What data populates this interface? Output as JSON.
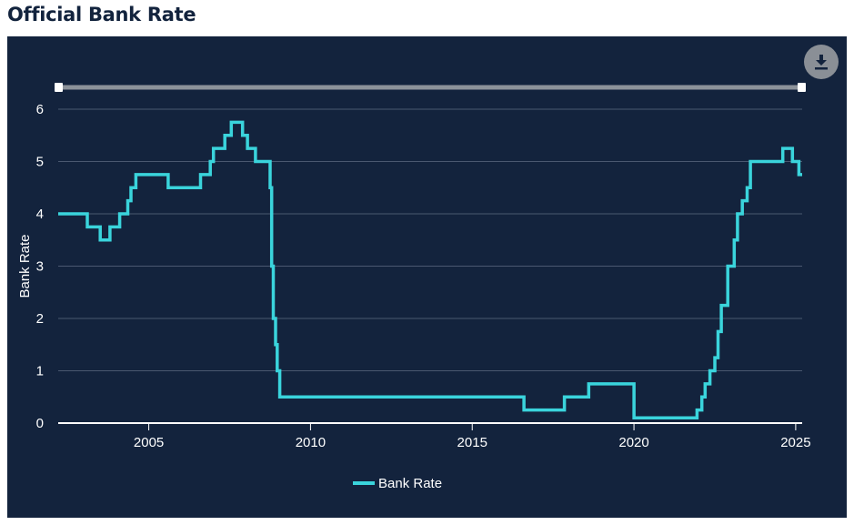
{
  "title": "Official Bank Rate",
  "controls": {
    "download_icon": "download-icon"
  },
  "chart_data": {
    "type": "line",
    "step": true,
    "xlabel": "",
    "ylabel": "Bank Rate",
    "xlim": [
      2002.2,
      2025.2
    ],
    "ylim": [
      0,
      6
    ],
    "xticks": [
      2005,
      2010,
      2015,
      2020,
      2025
    ],
    "xtick_labels": [
      "2005",
      "2010",
      "2015",
      "2020",
      "2025"
    ],
    "yticks": [
      0,
      1,
      2,
      3,
      4,
      5,
      6
    ],
    "ytick_labels": [
      "0",
      "1",
      "2",
      "3",
      "4",
      "5",
      "6"
    ],
    "grid": true,
    "legend_position": "bottom-center",
    "series": [
      {
        "name": "Bank Rate",
        "color": "#3ad4dc",
        "x": [
          2002.2,
          2003.1,
          2003.5,
          2003.8,
          2004.1,
          2004.35,
          2004.45,
          2004.6,
          2005.6,
          2006.6,
          2006.9,
          2007.0,
          2007.35,
          2007.9,
          2008.05,
          2008.3,
          2008.75,
          2008.8,
          2008.92,
          2008.97,
          2009.05,
          2009.14,
          2009.2,
          2016.6,
          2017.85,
          2018.6,
          2020.2,
          2020.22,
          2021.95,
          2022.1,
          2022.2,
          2022.35,
          2022.6,
          2022.7,
          2022.9,
          2023.1,
          2023.2,
          2023.6,
          2024.6,
          2024.9,
          2025.1,
          2025.2
        ],
        "y": [
          4.0,
          3.75,
          3.5,
          3.75,
          4.0,
          4.25,
          4.5,
          4.75,
          4.5,
          4.75,
          5.0,
          5.25,
          5.5,
          5.75,
          5.5,
          5.25,
          5.0,
          4.5,
          3.0,
          2.0,
          1.5,
          1.0,
          0.5,
          0.25,
          0.5,
          0.75,
          0.25,
          0.1,
          0.25,
          0.5,
          0.75,
          1.0,
          1.25,
          1.75,
          2.25,
          3.0,
          3.5,
          4.0,
          4.25,
          4.5,
          5.0,
          5.25
        ],
        "x_steps": [
          2002.2,
          2003.1,
          2003.5,
          2003.8,
          2004.1,
          2004.35,
          2004.45,
          2004.6,
          2005.6,
          2006.6,
          2006.9,
          2007.0,
          2007.35,
          2007.55,
          2007.9,
          2008.05,
          2008.3,
          2008.75,
          2008.8,
          2008.85,
          2008.92,
          2008.97,
          2009.05,
          2009.14,
          2016.6,
          2017.85,
          2018.6,
          2020.0,
          2020.22,
          2021.95,
          2022.1,
          2022.2,
          2022.35,
          2022.5,
          2022.6,
          2022.7,
          2022.9,
          2023.1,
          2023.2,
          2023.35,
          2023.5,
          2023.6,
          2024.6,
          2024.9,
          2025.1
        ],
        "y_steps": [
          4.0,
          3.75,
          3.5,
          3.75,
          4.0,
          4.25,
          4.5,
          4.75,
          4.5,
          4.75,
          5.0,
          5.25,
          5.5,
          5.75,
          5.5,
          5.25,
          5.0,
          4.5,
          3.0,
          2.0,
          1.5,
          1.0,
          0.5,
          0.5,
          0.25,
          0.5,
          0.75,
          0.1,
          0.1,
          0.25,
          0.5,
          0.75,
          1.0,
          1.25,
          1.75,
          2.25,
          3.0,
          3.5,
          4.0,
          4.25,
          4.5,
          5.0,
          5.25,
          5.0,
          4.75
        ]
      }
    ]
  }
}
